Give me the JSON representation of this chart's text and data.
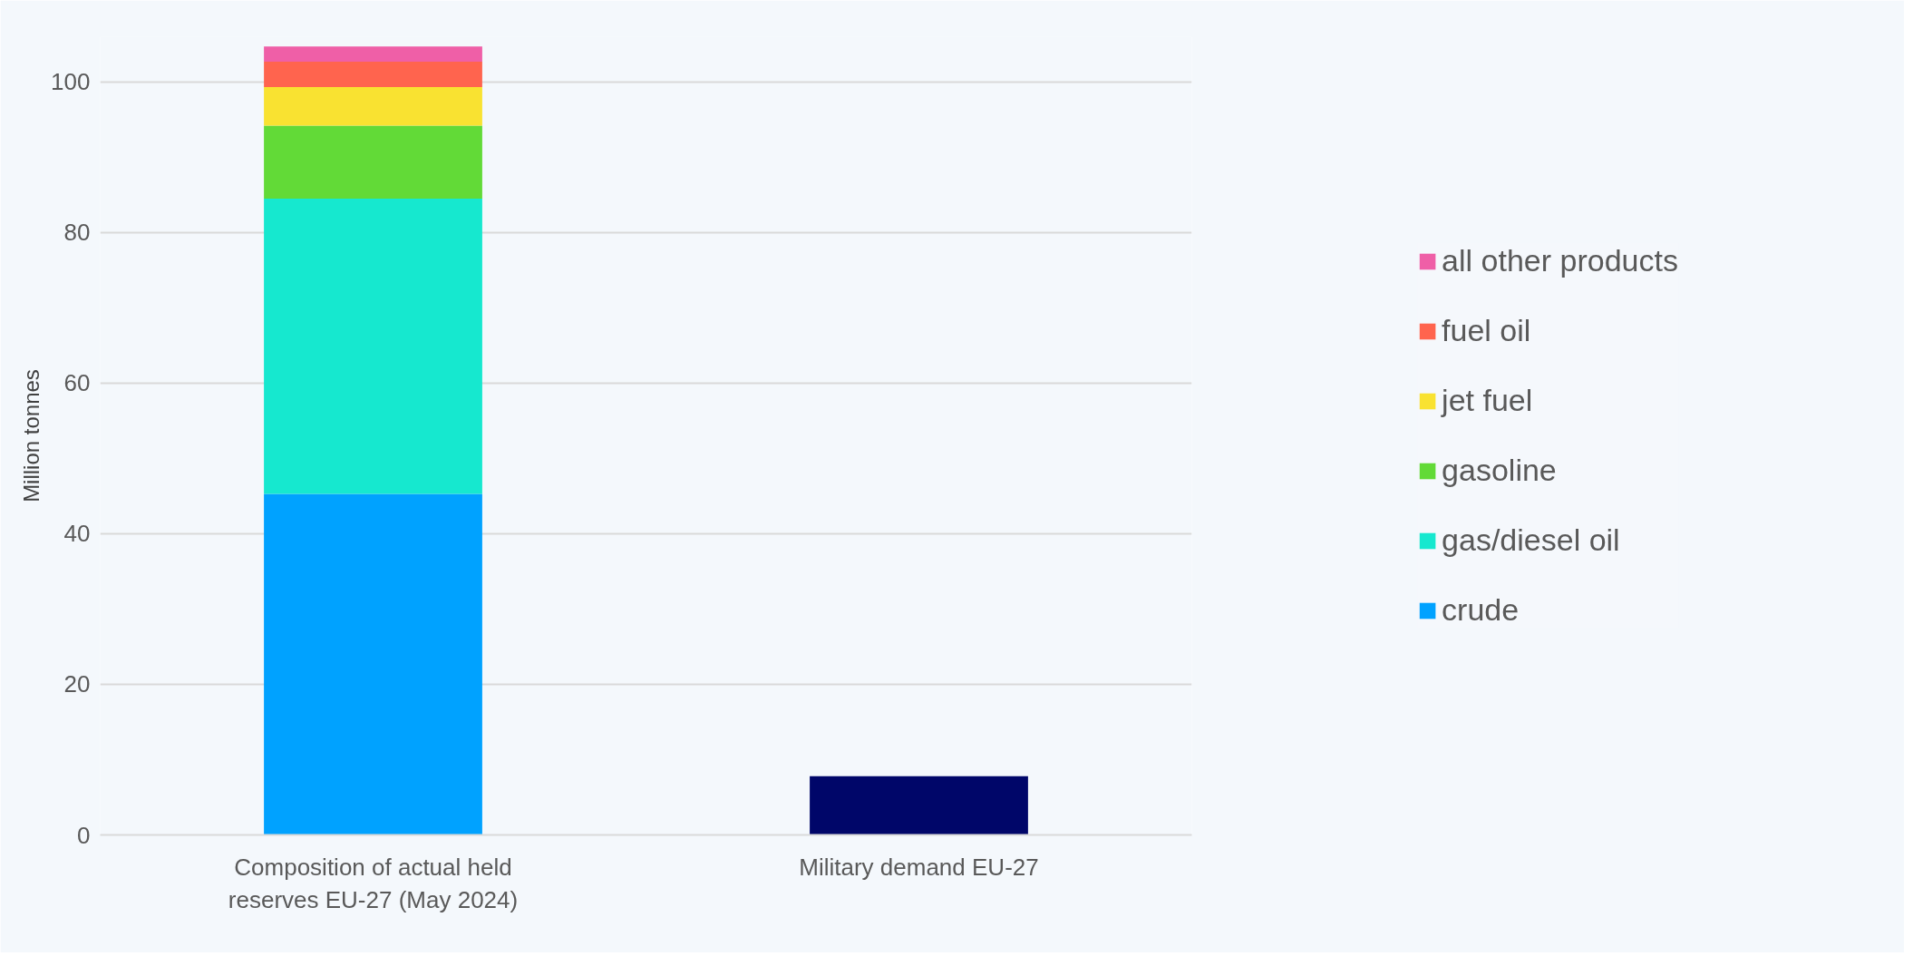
{
  "chart_data": {
    "type": "bar",
    "stacked": true,
    "ylabel": "Million tonnes",
    "categories": [
      "Composition of actual held reserves EU-27 (May 2024)",
      "Military demand EU-27"
    ],
    "series": [
      {
        "name": "crude",
        "color": "#00a2ff",
        "values": [
          45.3,
          null
        ]
      },
      {
        "name": "gas/diesel oil",
        "color": "#16e8cf",
        "values": [
          39.2,
          null
        ]
      },
      {
        "name": "gasoline",
        "color": "#62da37",
        "values": [
          9.7,
          null
        ]
      },
      {
        "name": "jet fuel",
        "color": "#f9e231",
        "values": [
          5.1,
          null
        ]
      },
      {
        "name": "fuel oil",
        "color": "#ff644e",
        "values": [
          3.4,
          null
        ]
      },
      {
        "name": "all other products",
        "color": "#ef5fa7",
        "values": [
          2.0,
          null
        ]
      },
      {
        "color": "#000669",
        "values": [
          null,
          7.8
        ]
      }
    ],
    "ylim": [
      0,
      106
    ],
    "yticks": [
      0,
      20,
      40,
      60,
      80,
      100
    ],
    "grid": "y",
    "legend": "right"
  }
}
